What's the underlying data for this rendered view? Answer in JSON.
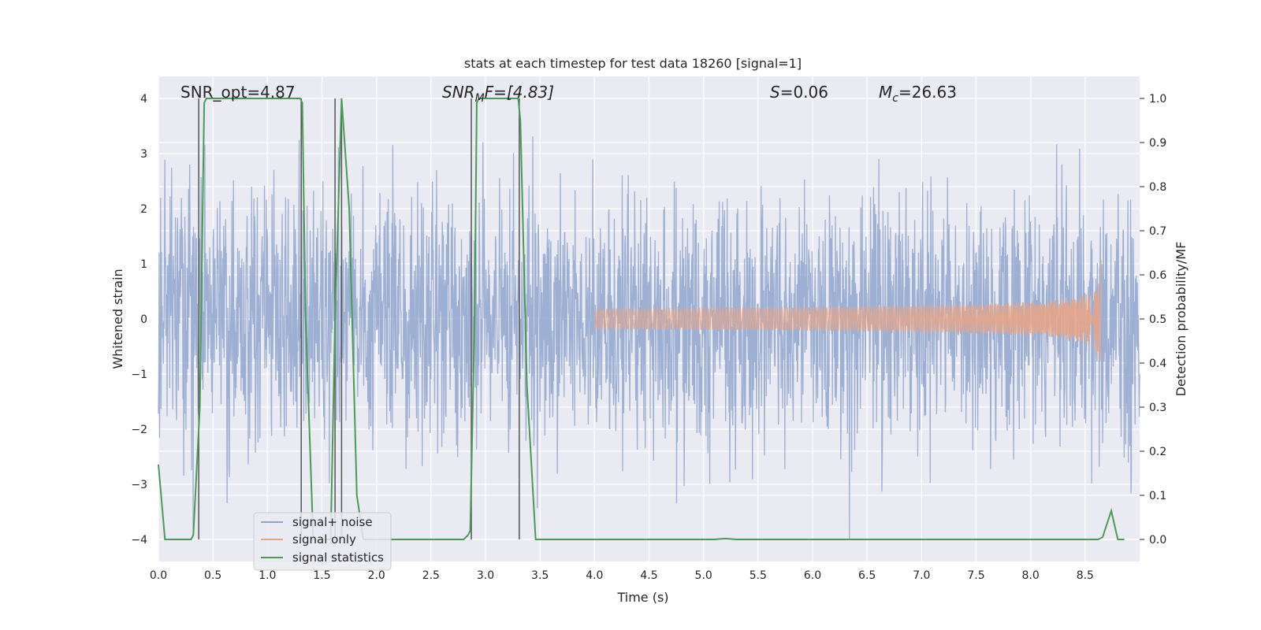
{
  "chart_data": {
    "type": "line",
    "title": "stats at each timestep for test data 18260 [signal=1]",
    "xlabel": "Time (s)",
    "ylabel_left": "Whitened strain",
    "ylabel_right": "Detection probability/MF",
    "xlim": [
      0,
      9.0
    ],
    "ylim_left": [
      -4.4,
      4.4
    ],
    "ylim_right": [
      -0.05,
      1.05
    ],
    "xticks": [
      "0.0",
      "0.5",
      "1.0",
      "1.5",
      "2.0",
      "2.5",
      "3.0",
      "3.5",
      "4.0",
      "4.5",
      "5.0",
      "5.5",
      "6.0",
      "6.5",
      "7.0",
      "7.5",
      "8.0",
      "8.5"
    ],
    "xtick_values": [
      0,
      0.5,
      1.0,
      1.5,
      2.0,
      2.5,
      3.0,
      3.5,
      4.0,
      4.5,
      5.0,
      5.5,
      6.0,
      6.5,
      7.0,
      7.5,
      8.0,
      8.5
    ],
    "yticks_left": [
      "−4",
      "−3",
      "−2",
      "−1",
      "0",
      "1",
      "2",
      "3",
      "4"
    ],
    "ytick_values_left": [
      -4,
      -3,
      -2,
      -1,
      0,
      1,
      2,
      3,
      4
    ],
    "yticks_right": [
      "0.0",
      "0.1",
      "0.2",
      "0.3",
      "0.4",
      "0.5",
      "0.6",
      "0.7",
      "0.8",
      "0.9",
      "1.0"
    ],
    "ytick_values_right": [
      0,
      0.1,
      0.2,
      0.3,
      0.4,
      0.5,
      0.6,
      0.7,
      0.8,
      0.9,
      1.0
    ],
    "grid": true,
    "legend_placement": "lower-left",
    "annotations": {
      "snr_opt": "SNR_opt=4.87",
      "snr_mf_main": "SNR",
      "snr_mf_sub": "M",
      "snr_mf_rest": "F=[4.83]",
      "s_main": "S",
      "s_rest": "=0.06",
      "mc_main": "M",
      "mc_sub": "c",
      "mc_rest": "=26.63"
    },
    "series": [
      {
        "name": "signal+ noise",
        "color": "#8fa4cc",
        "axis": "left",
        "description_values": "noise band",
        "amplitude_envelope": 2.0,
        "x_range": [
          0,
          9.0
        ]
      },
      {
        "name": "signal only",
        "color": "#e5a58a",
        "axis": "left",
        "chirp_start": 4.0,
        "chirp_end": 8.65,
        "peak_amplitude": 1.1
      },
      {
        "name": "signal statistics",
        "color": "#4c9a57",
        "axis": "right",
        "x": [
          0.0,
          0.06,
          0.3,
          0.32,
          0.38,
          0.42,
          0.44,
          1.3,
          1.32,
          1.35,
          1.42,
          1.58,
          1.62,
          1.68,
          1.75,
          1.82,
          1.88,
          2.8,
          2.84,
          2.86,
          2.9,
          2.92,
          2.94,
          3.3,
          3.32,
          3.38,
          3.46,
          5.1,
          5.2,
          5.3,
          8.62,
          8.66,
          8.74,
          8.8,
          8.86
        ],
        "y": [
          0.17,
          0.0,
          0.0,
          0.01,
          0.3,
          0.99,
          1.0,
          1.0,
          0.99,
          0.5,
          0.0,
          0.0,
          0.5,
          1.0,
          0.75,
          0.1,
          0.0,
          0.0,
          0.01,
          0.02,
          0.5,
          0.99,
          1.0,
          1.0,
          0.95,
          0.35,
          0.0,
          0.0,
          0.002,
          0.0,
          0.0,
          0.005,
          0.065,
          0.0,
          0.0
        ]
      }
    ],
    "vertical_markers": {
      "color": "#555555",
      "x": [
        0.37,
        1.31,
        1.62,
        1.68,
        2.87,
        3.31
      ]
    }
  }
}
